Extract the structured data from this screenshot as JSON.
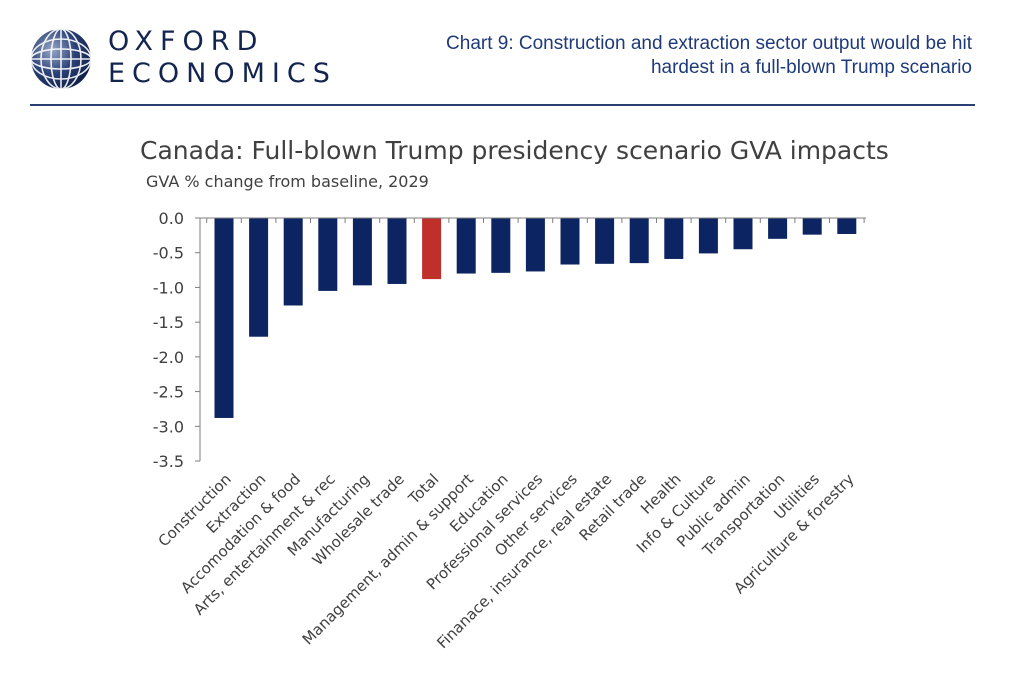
{
  "brand": {
    "line1": "OXFORD",
    "line2": "ECONOMICS",
    "logo_icon": "globe-icon"
  },
  "header": {
    "title_line1": "Chart 9: Construction and extraction sector output would be hit",
    "title_line2": "hardest in a full-blown Trump scenario"
  },
  "colors": {
    "bar": "#0c2461",
    "highlight": "#c0302b",
    "brand": "#13254f",
    "header_text": "#1f3a7a"
  },
  "chart_data": {
    "type": "bar",
    "title": "Canada: Full-blown Trump presidency scenario GVA impacts",
    "subtitle": "GVA % change from baseline, 2029",
    "categories": [
      "Construction",
      "Extraction",
      "Accomodation & food",
      "Arts, entertainment & rec",
      "Manufacturing",
      "Wholesale trade",
      "Total",
      "Management, admin & support",
      "Education",
      "Professional services",
      "Other services",
      "Finanace, insurance, real estate",
      "Retail trade",
      "Health",
      "Info & Culture",
      "Public admin",
      "Transportation",
      "Utilities",
      "Agriculture & forestry"
    ],
    "values": [
      -2.88,
      -1.71,
      -1.26,
      -1.05,
      -0.97,
      -0.95,
      -0.88,
      -0.8,
      -0.79,
      -0.77,
      -0.67,
      -0.66,
      -0.65,
      -0.59,
      -0.51,
      -0.45,
      -0.3,
      -0.24,
      -0.23
    ],
    "highlight_category": "Total",
    "ylim": [
      -3.5,
      0
    ],
    "yticks": [
      "0.0",
      "-0.5",
      "-1.0",
      "-1.5",
      "-2.0",
      "-2.5",
      "-3.0",
      "-3.5"
    ],
    "ytick_values": [
      0,
      -0.5,
      -1,
      -1.5,
      -2,
      -2.5,
      -3,
      -3.5
    ],
    "grid": false,
    "legend": "none"
  }
}
